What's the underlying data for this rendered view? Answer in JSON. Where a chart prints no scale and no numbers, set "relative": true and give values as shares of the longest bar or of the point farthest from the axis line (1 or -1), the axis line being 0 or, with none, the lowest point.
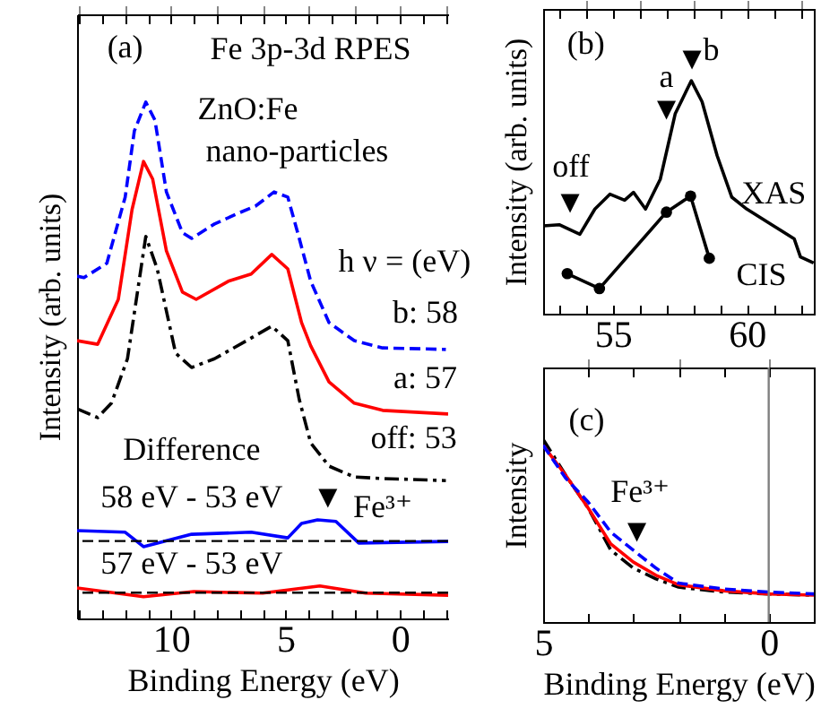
{
  "chart_data": [
    {
      "type": "line",
      "relative": true,
      "xlabel": "Binding Energy (eV)",
      "ylabel": "Intensity (arb. units)",
      "xlim": [
        14.1,
        -2.1
      ],
      "xticks": [
        {
          "value": 14,
          "label": null
        },
        {
          "value": 13,
          "label": null
        },
        {
          "value": 12,
          "label": null
        },
        {
          "value": 11,
          "label": null
        },
        10,
        {
          "value": 9,
          "label": null
        },
        {
          "value": 8,
          "label": null
        },
        {
          "value": 7,
          "label": null
        },
        {
          "value": 6,
          "label": null
        },
        5,
        {
          "value": 4,
          "label": null
        },
        {
          "value": 3,
          "label": null
        },
        {
          "value": 2,
          "label": null
        },
        {
          "value": 1,
          "label": null
        },
        0,
        {
          "value": -1,
          "label": null
        },
        {
          "value": -2,
          "label": null
        }
      ],
      "series": [
        {
          "color": "#0000ff",
          "line_style": "dashed",
          "x": [
            14.1,
            13.8,
            12.8,
            12.0,
            11.6,
            11.1,
            10.7,
            10.2,
            9.5,
            9.1,
            8.1,
            7.05,
            6.3,
            5.5,
            4.9,
            4.4,
            3.9,
            3.1,
            2.0,
            0.76,
            -2.0
          ],
          "values": [
            0.663,
            0.66,
            0.688,
            0.816,
            0.944,
            1.0,
            0.965,
            0.826,
            0.747,
            0.736,
            0.764,
            0.785,
            0.799,
            0.826,
            0.816,
            0.736,
            0.653,
            0.573,
            0.538,
            0.524,
            0.521
          ]
        },
        {
          "color": "#ff0000",
          "line_style": "solid",
          "x": [
            14.1,
            13.2,
            12.3,
            11.7,
            11.2,
            10.8,
            10.2,
            9.5,
            8.9,
            7.5,
            6.5,
            5.6,
            4.9,
            4.3,
            3.9,
            3.1,
            2.0,
            0.76,
            -2.1
          ],
          "values": [
            0.538,
            0.531,
            0.618,
            0.792,
            0.885,
            0.851,
            0.712,
            0.632,
            0.618,
            0.653,
            0.667,
            0.705,
            0.677,
            0.573,
            0.528,
            0.458,
            0.417,
            0.403,
            0.396
          ]
        },
        {
          "color": "#000000",
          "line_style": "dashdot",
          "x": [
            14.1,
            13.2,
            12.6,
            11.9,
            11.1,
            10.6,
            9.8,
            9.1,
            8.1,
            6.7,
            5.6,
            4.9,
            4.4,
            3.9,
            3.1,
            2.0,
            0.76,
            -2.0
          ],
          "values": [
            0.406,
            0.389,
            0.417,
            0.503,
            0.74,
            0.677,
            0.514,
            0.486,
            0.503,
            0.538,
            0.566,
            0.538,
            0.424,
            0.34,
            0.295,
            0.274,
            0.271,
            0.267
          ]
        },
        {
          "color": "#0000ff",
          "line_style": "solid",
          "x": [
            14.1,
            12.0,
            11.2,
            9.1,
            6.5,
            4.9,
            4.3,
            3.6,
            2.8,
            1.8,
            -2.1
          ],
          "values": [
            0.17,
            0.167,
            0.139,
            0.163,
            0.167,
            0.156,
            0.184,
            0.191,
            0.188,
            0.146,
            0.149
          ]
        },
        {
          "color": "#ff0000",
          "line_style": "solid",
          "x": [
            14.1,
            11.2,
            9.0,
            6.0,
            3.5,
            1.5,
            -2.1
          ],
          "values": [
            0.059,
            0.042,
            0.052,
            0.049,
            0.063,
            0.049,
            0.045
          ]
        }
      ],
      "ref_lines": [
        {
          "axis": "y",
          "value": 0.15,
          "color": "#000000",
          "line_style": "dashed"
        },
        {
          "axis": "y",
          "value": 0.05,
          "color": "#000000",
          "line_style": "dashed"
        }
      ],
      "annotations": [
        "(a)",
        "Fe 3p-3d  RPES",
        "ZnO:Fe",
        "nano-particles",
        "h ν = (eV)",
        "b: 58",
        "a: 57",
        "off: 53",
        "Difference",
        "58 eV - 53 eV",
        "57 eV - 53 eV",
        "▼",
        "Fe³⁺"
      ]
    },
    {
      "type": "line",
      "relative": true,
      "ylabel": "Intensity (arb. units)",
      "xlim": [
        52.4,
        62.5
      ],
      "xticks": [
        {
          "value": 53,
          "label": null
        },
        {
          "value": 54,
          "label": null
        },
        55,
        {
          "value": 56,
          "label": null
        },
        {
          "value": 57,
          "label": null
        },
        {
          "value": 58,
          "label": null
        },
        {
          "value": 59,
          "label": null
        },
        60,
        {
          "value": 61,
          "label": null
        },
        {
          "value": 62,
          "label": null
        }
      ],
      "series": [
        {
          "color": "#000000",
          "line_style": "solid",
          "x": [
            52.4,
            53.0,
            53.77,
            54.33,
            54.89,
            55.44,
            55.77,
            56.22,
            56.77,
            57.33,
            57.93,
            58.33,
            58.89,
            59.44,
            60.0,
            60.89,
            61.77,
            62.0,
            62.49
          ],
          "values": [
            0.377,
            0.382,
            0.341,
            0.449,
            0.513,
            0.487,
            0.521,
            0.449,
            0.577,
            0.859,
            1.0,
            0.91,
            0.679,
            0.5,
            0.449,
            0.385,
            0.321,
            0.244,
            0.218
          ]
        },
        {
          "color": "#000000",
          "line_style": "solid",
          "marker": "circle",
          "x": [
            53.3,
            54.5,
            57.0,
            57.9,
            58.6
          ],
          "values": [
            0.172,
            0.108,
            0.436,
            0.505,
            0.238
          ]
        }
      ],
      "annotations": [
        "(b)",
        "off",
        "▼",
        "a",
        "▼",
        "b",
        "▼",
        "XAS",
        "CIS"
      ]
    },
    {
      "type": "line",
      "relative": true,
      "xlabel": "Binding Energy (eV)",
      "ylabel": "Intensity",
      "xlim": [
        5,
        -1
      ],
      "xticks": [
        5,
        {
          "value": 4,
          "label": null
        },
        {
          "value": 3,
          "label": null
        },
        {
          "value": 2,
          "label": null
        },
        {
          "value": 1,
          "label": null
        },
        0
      ],
      "series": [
        {
          "color": "#000000",
          "line_style": "dashdot",
          "x": [
            5,
            4.5,
            4,
            3.5,
            3,
            2.5,
            2,
            1,
            0,
            -1
          ],
          "values": [
            1.0,
            0.803,
            0.623,
            0.393,
            0.295,
            0.236,
            0.191,
            0.164,
            0.154,
            0.147
          ]
        },
        {
          "color": "#ff0000",
          "line_style": "solid",
          "x": [
            5,
            4.5,
            4,
            3.5,
            3,
            2.5,
            2,
            1,
            0,
            -1
          ],
          "values": [
            0.967,
            0.803,
            0.623,
            0.427,
            0.328,
            0.256,
            0.204,
            0.171,
            0.154,
            0.147
          ]
        },
        {
          "color": "#0000ff",
          "line_style": "dashed",
          "x": [
            5,
            4.5,
            4,
            3.5,
            3,
            2.5,
            2,
            1,
            0,
            -1
          ],
          "values": [
            0.967,
            0.787,
            0.656,
            0.492,
            0.393,
            0.295,
            0.213,
            0.181,
            0.164,
            0.154
          ]
        }
      ],
      "ref_lines": [
        {
          "axis": "x",
          "value": 0,
          "color": "#808080",
          "line_style": "solid"
        }
      ],
      "annotations": [
        "(c)",
        "Fe³⁺",
        "▼"
      ]
    }
  ]
}
